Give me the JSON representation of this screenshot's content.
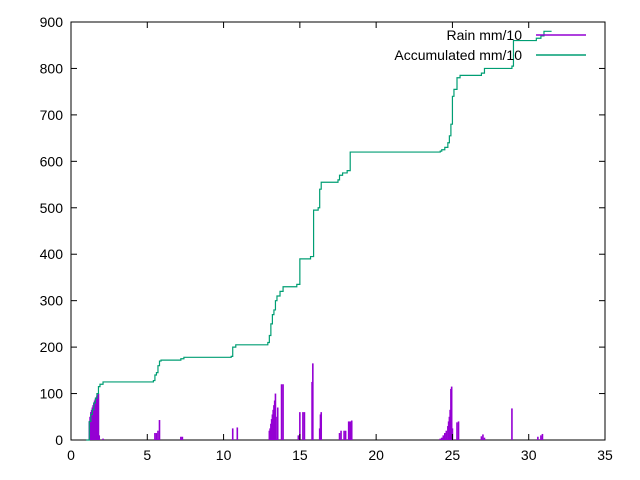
{
  "chart_data": {
    "type": "line",
    "xlim": [
      0,
      35
    ],
    "ylim": [
      0,
      900
    ],
    "xticks": [
      0,
      5,
      10,
      15,
      20,
      25,
      30,
      35
    ],
    "yticks": [
      0,
      100,
      200,
      300,
      400,
      500,
      600,
      700,
      800,
      900
    ],
    "grid": false,
    "legend_position": "top-right",
    "series": [
      {
        "name": "Rain mm/10",
        "style": "impulses",
        "color": "#9400d3",
        "x": [
          1.2,
          1.25,
          1.3,
          1.35,
          1.4,
          1.45,
          1.5,
          1.55,
          1.6,
          1.65,
          1.7,
          1.75,
          1.8,
          1.85,
          2.1,
          5.5,
          5.6,
          5.7,
          5.8,
          7.2,
          7.3,
          10.6,
          10.9,
          13.0,
          13.05,
          13.1,
          13.15,
          13.2,
          13.25,
          13.3,
          13.35,
          13.4,
          13.5,
          13.55,
          13.8,
          13.9,
          14.9,
          15.0,
          15.2,
          15.3,
          15.8,
          15.85,
          16.3,
          16.35,
          16.4,
          17.6,
          17.7,
          17.9,
          18.0,
          18.2,
          18.3,
          18.4,
          24.2,
          24.3,
          24.4,
          24.5,
          24.6,
          24.7,
          24.75,
          24.8,
          24.85,
          24.9,
          24.95,
          25.0,
          25.3,
          25.4,
          26.9,
          27.0,
          27.1,
          28.9,
          30.6,
          30.8,
          30.9
        ],
        "y": [
          40,
          50,
          60,
          65,
          70,
          75,
          80,
          85,
          88,
          92,
          95,
          98,
          100,
          10,
          3,
          15,
          15,
          20,
          43,
          7,
          7,
          25,
          27,
          20,
          25,
          35,
          45,
          55,
          65,
          75,
          85,
          100,
          50,
          70,
          120,
          120,
          10,
          60,
          60,
          60,
          125,
          165,
          25,
          55,
          60,
          15,
          20,
          20,
          20,
          40,
          40,
          42,
          3,
          5,
          10,
          15,
          20,
          30,
          40,
          50,
          65,
          110,
          115,
          25,
          38,
          40,
          8,
          12,
          5,
          68,
          7,
          10,
          13
        ],
        "ylim_note": ""
      },
      {
        "name": "Accumulated mm/10",
        "style": "steps",
        "color": "#009e73",
        "x": [
          1.0,
          1.2,
          1.3,
          1.4,
          1.5,
          1.6,
          1.7,
          1.8,
          1.9,
          2.1,
          5.4,
          5.5,
          5.6,
          5.7,
          5.8,
          5.9,
          7.2,
          7.4,
          10.5,
          10.6,
          10.8,
          12.9,
          13.0,
          13.1,
          13.2,
          13.3,
          13.4,
          13.5,
          13.7,
          13.9,
          14.1,
          14.8,
          15.0,
          15.7,
          15.9,
          16.2,
          16.3,
          16.4,
          17.5,
          17.6,
          17.8,
          18.1,
          18.3,
          20.5,
          24.2,
          24.3,
          24.5,
          24.7,
          24.8,
          24.9,
          25.0,
          25.1,
          25.3,
          25.4,
          25.5,
          26.9,
          27.1,
          28.8,
          28.9,
          29.0,
          30.5,
          30.8,
          31.0,
          31.5
        ],
        "y": [
          0,
          40,
          55,
          65,
          80,
          90,
          100,
          115,
          120,
          125,
          128,
          140,
          145,
          160,
          170,
          172,
          175,
          178,
          180,
          200,
          205,
          210,
          225,
          250,
          270,
          280,
          300,
          310,
          320,
          330,
          330,
          335,
          390,
          395,
          495,
          500,
          540,
          555,
          560,
          570,
          575,
          580,
          620,
          620,
          622,
          625,
          630,
          640,
          655,
          680,
          740,
          755,
          780,
          780,
          785,
          790,
          800,
          800,
          805,
          860,
          865,
          870,
          880,
          880
        ]
      }
    ]
  }
}
